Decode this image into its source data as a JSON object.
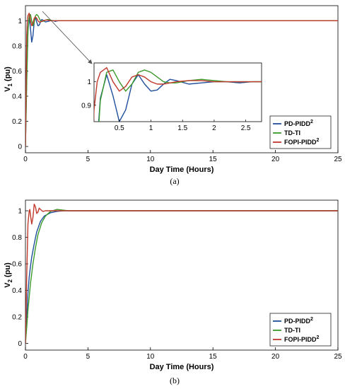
{
  "chart_data": [
    {
      "type": "line",
      "panel": "(a)",
      "xlabel": "Day Time (Hours)",
      "ylabel": "V",
      "ylabel_sub": "1",
      "ylabel_unit": " (pu)",
      "xlim": [
        0,
        25
      ],
      "ylim": [
        -0.05,
        1.12
      ],
      "xticks": [
        0,
        5,
        10,
        15,
        20,
        25
      ],
      "yticks": [
        0,
        0.2,
        0.4,
        0.6,
        0.8,
        1
      ],
      "legend_position": "bottom-right",
      "grid": false,
      "series": [
        {
          "name": "PD-PIDD",
          "sup": "2",
          "color": "#1f4e9c",
          "x": [
            0,
            0.1,
            0.2,
            0.3,
            0.4,
            0.5,
            0.6,
            0.7,
            0.8,
            0.9,
            1.0,
            1.1,
            1.2,
            1.3,
            1.4,
            1.6,
            1.8,
            2.0,
            2.2,
            2.4,
            2.6,
            2.8,
            3,
            5,
            10,
            15,
            20,
            25
          ],
          "y": [
            0,
            0.55,
            0.93,
            1.03,
            0.94,
            0.83,
            0.88,
            0.99,
            1.03,
            0.99,
            0.96,
            0.965,
            0.99,
            1.01,
            1.005,
            0.99,
            0.995,
            1.0,
            1.0,
            0.995,
            1.0,
            1.0,
            1.0,
            1.0,
            1.0,
            1.0,
            1.0,
            1.0
          ]
        },
        {
          "name": "TD-TI",
          "color": "#3a9a2a",
          "x": [
            0,
            0.1,
            0.2,
            0.3,
            0.4,
            0.5,
            0.6,
            0.7,
            0.8,
            0.9,
            1.0,
            1.1,
            1.2,
            1.3,
            1.4,
            1.6,
            1.8,
            2.0,
            2.2,
            2.4,
            2.6,
            2.8,
            3,
            5,
            10,
            15,
            20,
            25
          ],
          "y": [
            0,
            0.5,
            0.92,
            1.04,
            1.05,
            1.0,
            0.96,
            0.99,
            1.04,
            1.05,
            1.04,
            1.02,
            1.0,
            0.995,
            0.995,
            1.005,
            1.01,
            1.005,
            1.0,
            1.0,
            1.0,
            1.0,
            1.0,
            1.0,
            1.0,
            1.0,
            1.0,
            1.0
          ]
        },
        {
          "name": "FOPI-PIDD",
          "sup": "2",
          "color": "#c0392b",
          "x": [
            0,
            0.05,
            0.1,
            0.15,
            0.2,
            0.3,
            0.4,
            0.5,
            0.6,
            0.7,
            0.8,
            0.9,
            1.0,
            1.1,
            1.2,
            1.4,
            1.6,
            1.8,
            2.0,
            2.2,
            2.4,
            2.6,
            2.8,
            3,
            5,
            10,
            15,
            20,
            25
          ],
          "y": [
            0,
            0.45,
            0.88,
            1.0,
            1.04,
            1.06,
            1.0,
            0.96,
            0.98,
            1.02,
            1.03,
            1.02,
            1.0,
            0.99,
            0.99,
            1.0,
            1.005,
            1.005,
            1.0,
            1.0,
            1.0,
            1.0,
            1.0,
            1.0,
            1.0,
            1.0,
            1.0,
            1.0,
            1.0
          ]
        }
      ],
      "inset": {
        "xlim": [
          0.1,
          2.75
        ],
        "ylim": [
          0.83,
          1.08
        ],
        "xticks": [
          0.5,
          1,
          1.5,
          2,
          2.5
        ],
        "yticks": [
          0.9,
          1
        ]
      }
    },
    {
      "type": "line",
      "panel": "(b)",
      "xlabel": "Day Time (Hours)",
      "ylabel": "V",
      "ylabel_sub": "2",
      "ylabel_unit": " (pu)",
      "xlim": [
        0,
        25
      ],
      "ylim": [
        -0.05,
        1.08
      ],
      "xticks": [
        0,
        5,
        10,
        15,
        20,
        25
      ],
      "yticks": [
        0,
        0.2,
        0.4,
        0.6,
        0.8,
        1
      ],
      "legend_position": "bottom-right",
      "grid": false,
      "series": [
        {
          "name": "PD-PIDD",
          "sup": "2",
          "color": "#1f4e9c",
          "x": [
            0,
            0.1,
            0.2,
            0.3,
            0.4,
            0.5,
            0.7,
            0.9,
            1.2,
            1.5,
            2.0,
            2.5,
            3.0,
            4.0,
            5,
            10,
            15,
            20,
            25
          ],
          "y": [
            0,
            0.2,
            0.38,
            0.5,
            0.58,
            0.65,
            0.75,
            0.84,
            0.92,
            0.96,
            0.985,
            0.995,
            1.0,
            1.0,
            1.0,
            1.0,
            1.0,
            1.0,
            1.0
          ]
        },
        {
          "name": "TD-TI",
          "color": "#3a9a2a",
          "x": [
            0,
            0.1,
            0.2,
            0.3,
            0.4,
            0.6,
            0.8,
            1.0,
            1.3,
            1.6,
            2.0,
            2.5,
            3.0,
            3.5,
            4.0,
            5,
            10,
            15,
            20,
            25
          ],
          "y": [
            0,
            0.12,
            0.25,
            0.35,
            0.45,
            0.6,
            0.72,
            0.82,
            0.91,
            0.96,
            0.995,
            1.01,
            1.005,
            1.0,
            1.0,
            1.0,
            1.0,
            1.0,
            1.0,
            1.0
          ]
        },
        {
          "name": "FOPI-PIDD",
          "sup": "2",
          "color": "#c0392b",
          "x": [
            0,
            0.1,
            0.2,
            0.3,
            0.35,
            0.4,
            0.5,
            0.6,
            0.7,
            0.8,
            0.9,
            1.0,
            1.1,
            1.2,
            1.4,
            1.6,
            2.0,
            3,
            5,
            10,
            15,
            20,
            25
          ],
          "y": [
            0,
            0.5,
            0.9,
            1.0,
            1.01,
            0.97,
            0.9,
            0.95,
            1.05,
            1.03,
            0.98,
            0.99,
            1.02,
            1.01,
            0.995,
            1.0,
            1.0,
            1.0,
            1.0,
            1.0,
            1.0,
            1.0,
            1.0
          ]
        }
      ]
    }
  ]
}
